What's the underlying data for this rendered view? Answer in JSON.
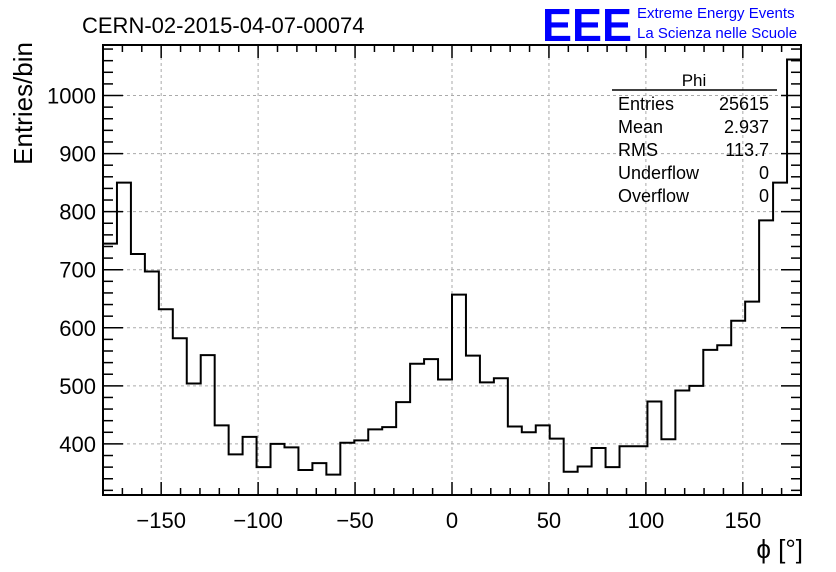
{
  "header": {
    "run_title": "CERN-02-2015-04-07-00074",
    "logo_text": "EEE",
    "logo_line1": "Extreme Energy Events",
    "logo_line2": "La Scienza nelle Scuole"
  },
  "stats_box": {
    "name": "Phi",
    "rows": [
      {
        "label": "Entries",
        "value": "25615"
      },
      {
        "label": "Mean",
        "value": "2.937"
      },
      {
        "label": "RMS",
        "value": "113.7"
      },
      {
        "label": "Underflow",
        "value": "0"
      },
      {
        "label": "Overflow",
        "value": "0"
      }
    ]
  },
  "chart_data": {
    "type": "histogram",
    "xlabel": "ϕ [°]",
    "ylabel": "Entries/bin",
    "xlim": [
      -180,
      180
    ],
    "ylim": [
      312,
      1087
    ],
    "xticks": [
      -150,
      -100,
      -50,
      0,
      50,
      100,
      150
    ],
    "yticks": [
      400,
      500,
      600,
      700,
      800,
      900,
      1000
    ],
    "bin_width": 7.2,
    "bin_start": -180,
    "grid": true,
    "color": "#000000",
    "values": [
      745,
      850,
      727,
      697,
      632,
      582,
      504,
      553,
      432,
      382,
      412,
      360,
      400,
      394,
      355,
      367,
      347,
      402,
      406,
      425,
      429,
      472,
      538,
      546,
      511,
      657,
      552,
      506,
      513,
      430,
      420,
      432,
      409,
      352,
      361,
      393,
      360,
      396,
      396,
      473,
      408,
      492,
      500,
      562,
      570,
      612,
      645,
      785,
      850,
      1062
    ]
  }
}
